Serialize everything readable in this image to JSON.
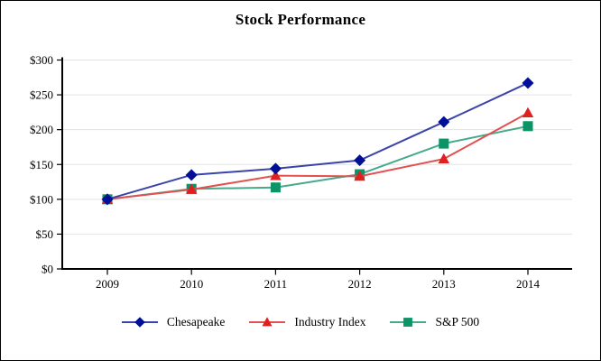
{
  "chart_data": {
    "type": "line",
    "title": "Stock Performance",
    "x": [
      "2009",
      "2010",
      "2011",
      "2012",
      "2013",
      "2014"
    ],
    "series": [
      {
        "name": "Chesapeake",
        "marker": "diamond",
        "color": "#000f99",
        "line_color": "#3a43a8",
        "values": [
          100,
          135,
          144,
          156,
          211,
          267
        ]
      },
      {
        "name": "Industry Index",
        "marker": "triangle",
        "color": "#e01f1f",
        "line_color": "#e25050",
        "values": [
          100,
          114,
          134,
          133,
          158,
          224
        ]
      },
      {
        "name": "S&P 500",
        "marker": "square",
        "color": "#0c9466",
        "line_color": "#46a98b",
        "values": [
          100,
          115,
          117,
          136,
          180,
          205
        ]
      }
    ],
    "xlabel": "",
    "ylabel": "",
    "ylim": [
      0,
      300
    ],
    "ytick_step": 50,
    "y_tick_labels": [
      "$0",
      "$50",
      "$100",
      "$150",
      "$200",
      "$250",
      "$300"
    ],
    "grid": true,
    "grid_color": "#e2e2e2",
    "axis_color": "#000000",
    "legend_position": "bottom"
  }
}
